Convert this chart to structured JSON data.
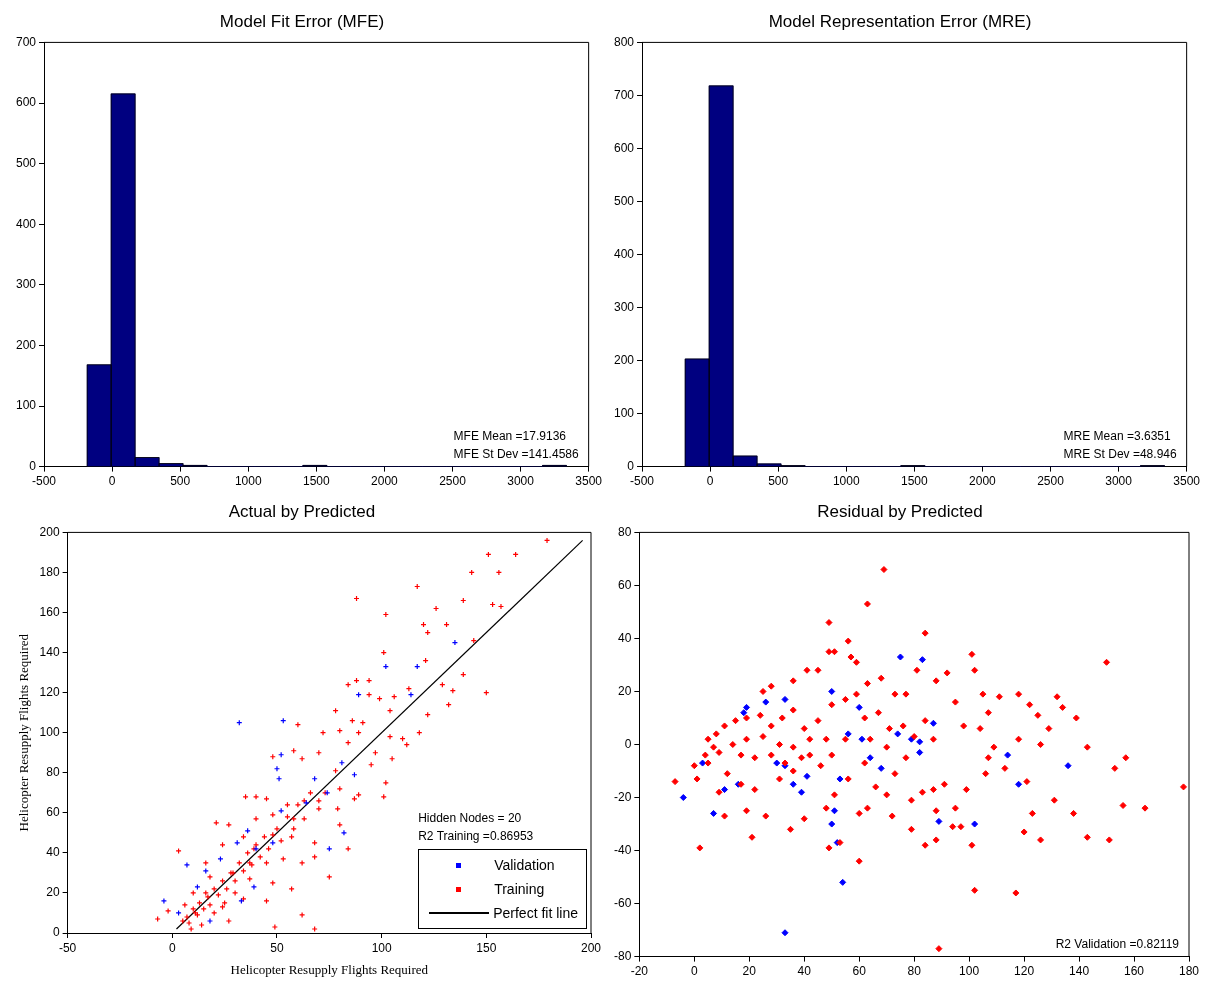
{
  "chart_data": [
    {
      "type": "histogram",
      "title": "Model Fit Error (MFE)",
      "color": "#000080",
      "bins": [
        -183,
        -7,
        169,
        345,
        521,
        697,
        873,
        1049,
        1225,
        1401,
        1577,
        1753,
        1929,
        2105,
        2281,
        2457,
        2633,
        2809,
        2985,
        3161,
        3337
      ],
      "values": [
        168,
        615,
        15,
        5,
        2,
        0,
        0,
        0,
        0,
        2,
        0,
        0,
        0,
        0,
        0,
        0,
        0,
        0,
        0,
        2
      ],
      "xlim": [
        -500,
        3500
      ],
      "xticks": [
        -500,
        0,
        500,
        1000,
        1500,
        2000,
        2500,
        3000,
        3500
      ],
      "ylim": [
        0,
        700
      ],
      "yticks": [
        0,
        100,
        200,
        300,
        400,
        500,
        600,
        700
      ],
      "annotations": [
        "MFE Mean =17.9136",
        "MFE St Dev =141.4586"
      ]
    },
    {
      "type": "histogram",
      "title": "Model Representation Error (MRE)",
      "color": "#000080",
      "bins": [
        -183,
        -7,
        169,
        345,
        521,
        697,
        873,
        1049,
        1225,
        1401,
        1577,
        1753,
        1929,
        2105,
        2281,
        2457,
        2633,
        2809,
        2985,
        3161,
        3337
      ],
      "values": [
        203,
        718,
        20,
        5,
        2,
        0,
        0,
        0,
        0,
        2,
        0,
        0,
        0,
        0,
        0,
        0,
        0,
        0,
        0,
        2
      ],
      "xlim": [
        -500,
        3500
      ],
      "xticks": [
        -500,
        0,
        500,
        1000,
        1500,
        2000,
        2500,
        3000,
        3500
      ],
      "ylim": [
        0,
        800
      ],
      "yticks": [
        0,
        100,
        200,
        300,
        400,
        500,
        600,
        700,
        800
      ],
      "annotations": [
        "MRE Mean =3.6351",
        "MRE St Dev =48.946"
      ]
    },
    {
      "type": "scatter",
      "title": "Actual by Predicted",
      "xlabel": "Helicopter Resupply Flights Required",
      "ylabel": "Helicopter Resupply Flights Required",
      "marker": "cross",
      "legend": "bottom right",
      "xlim": [
        -50,
        200
      ],
      "xticks": [
        -50,
        0,
        50,
        100,
        150,
        200
      ],
      "ylim": [
        0,
        200
      ],
      "yticks": [
        0,
        20,
        40,
        60,
        80,
        100,
        120,
        140,
        160,
        180,
        200
      ],
      "annotations": [
        "Hidden Nodes = 20",
        "R2 Training =0.86953"
      ],
      "series": [
        {
          "name": "Validation",
          "color": "#0000ff",
          "x": [
            32,
            53,
            52,
            50,
            51,
            135,
            102,
            117,
            89,
            114,
            81,
            87,
            68,
            74,
            64,
            52,
            36,
            48,
            40,
            82,
            75,
            7,
            -4,
            3,
            18,
            33,
            31,
            23,
            16,
            12,
            39
          ],
          "values": [
            105,
            106,
            89,
            82,
            77,
            145,
            133,
            133,
            119,
            119,
            85,
            79,
            77,
            70,
            65,
            61,
            51,
            45,
            42,
            50,
            42,
            34,
            16,
            10,
            6,
            16,
            45,
            37,
            31,
            23,
            23
          ]
        },
        {
          "name": "Training",
          "color": "#ff0000",
          "x": [
            179,
            151,
            164,
            143,
            156,
            117,
            88,
            139,
            153,
            157,
            126,
            102,
            120,
            131,
            122,
            144,
            101,
            121,
            139,
            150,
            129,
            134,
            132,
            88,
            94,
            84,
            94,
            99,
            106,
            113,
            104,
            78,
            60,
            72,
            80,
            86,
            91,
            84,
            89,
            104,
            110,
            112,
            118,
            122,
            105,
            97,
            95,
            102,
            101,
            48,
            58,
            62,
            70,
            78,
            87,
            89,
            80,
            73,
            35,
            40,
            45,
            55,
            63,
            70,
            79,
            21,
            27,
            40,
            48,
            58,
            68,
            84,
            80,
            57,
            48,
            34,
            3,
            24,
            16,
            39,
            45,
            53,
            62,
            68,
            75,
            37,
            48,
            57,
            45,
            62,
            68,
            49,
            -7,
            -2,
            11,
            24,
            27,
            34,
            16,
            29,
            37,
            5,
            7,
            8,
            10,
            12,
            13,
            15,
            17,
            18,
            20,
            22,
            24,
            26,
            28,
            30,
            32,
            34,
            36,
            38,
            40,
            42,
            44,
            46,
            50,
            52,
            55,
            58,
            60,
            63,
            66,
            70,
            6,
            10,
            14,
            9,
            20,
            25,
            18,
            30
          ],
          "values": [
            196,
            189,
            189,
            180,
            180,
            173,
            167,
            166,
            164,
            163,
            162,
            159,
            154,
            154,
            150,
            146,
            140,
            136,
            129,
            120,
            124,
            121,
            114,
            126,
            126,
            124,
            119,
            117,
            118,
            122,
            111,
            111,
            104,
            100,
            101,
            106,
            105,
            95,
            100,
            98,
            97,
            94,
            100,
            109,
            87,
            90,
            84,
            75,
            68,
            88,
            91,
            87,
            90,
            81,
            67,
            69,
            72,
            70,
            68,
            68,
            67,
            64,
            66,
            62,
            62,
            55,
            54,
            57,
            59,
            57,
            45,
            42,
            54,
            48,
            49,
            48,
            41,
            44,
            35,
            42,
            35,
            37,
            35,
            38,
            28,
            27,
            25,
            22,
            16,
            9,
            2,
            3,
            7,
            11,
            10,
            13,
            6,
            17,
            20,
            30,
            35,
            6,
            8,
            5,
            12,
            9,
            15,
            12,
            18,
            14,
            22,
            19,
            26,
            22,
            30,
            26,
            35,
            31,
            40,
            34,
            44,
            38,
            48,
            42,
            52,
            46,
            58,
            52,
            64,
            57,
            70,
            66,
            14,
            20,
            4,
            2,
            10,
            15,
            28,
            20
          ]
        },
        {
          "name": "Perfect fit line",
          "type": "line",
          "color": "#000000",
          "marker": "none",
          "x": [
            2,
            196
          ],
          "values": [
            2,
            196
          ]
        }
      ]
    },
    {
      "type": "scatter",
      "title": "Residual by Predicted",
      "marker": "diamond",
      "xlim": [
        -20,
        180
      ],
      "xticks": [
        -20,
        0,
        20,
        40,
        60,
        80,
        100,
        120,
        140,
        160,
        180
      ],
      "ylim": [
        -80,
        80
      ],
      "yticks": [
        -80,
        -60,
        -40,
        -20,
        0,
        20,
        40,
        60,
        80
      ],
      "annotations": [
        "R2 Validation =0.82119"
      ],
      "series": [
        {
          "color": "#ff0000",
          "x": [
            69,
            63,
            49,
            56,
            84,
            49,
            51,
            57,
            59,
            41,
            45,
            36,
            28,
            25,
            101,
            102,
            150,
            92,
            81,
            88,
            73,
            77,
            68,
            63,
            105,
            111,
            118,
            132,
            122,
            134,
            139,
            125,
            95,
            98,
            104,
            107,
            129,
            126,
            118,
            109,
            107,
            113,
            106,
            143,
            157,
            153,
            178,
            156,
            164,
            151,
            143,
            138,
            131,
            123,
            121,
            126,
            120,
            117,
            102,
            101,
            99,
            97,
            94,
            95,
            91,
            88,
            88,
            84,
            87,
            83,
            79,
            79,
            89,
            77,
            73,
            72,
            70,
            66,
            63,
            60,
            60,
            53,
            49,
            40,
            35,
            19,
            21,
            26,
            2,
            -7,
            0,
            1,
            11,
            9,
            48,
            51,
            56,
            62,
            46,
            42,
            36,
            31,
            22,
            17,
            12,
            5,
            7,
            8,
            11,
            15,
            19,
            24,
            28,
            32,
            36,
            40,
            45,
            50,
            55,
            59,
            62,
            67,
            71,
            76,
            80,
            84,
            87,
            55,
            48,
            42,
            36,
            31,
            25,
            19,
            14,
            9,
            5,
            4,
            17,
            22,
            28,
            33,
            39,
            50,
            70,
            64
          ],
          "values": [
            66,
            53,
            46,
            39,
            42,
            35,
            35,
            33,
            31,
            28,
            28,
            24,
            22,
            20,
            34,
            28,
            31,
            27,
            28,
            24,
            19,
            19,
            25,
            23,
            19,
            18,
            19,
            18,
            15,
            14,
            10,
            11,
            16,
            7,
            6,
            12,
            6,
            0,
            2,
            -1,
            -5,
            -9,
            -11,
            -1,
            -5,
            -9,
            -16,
            -23,
            -24,
            -36,
            -35,
            -26,
            -21,
            -26,
            -14,
            -36,
            -33,
            -56,
            -55,
            -38,
            -17,
            -31,
            -31,
            -24,
            -15,
            -25,
            -36,
            -38,
            -17,
            -18,
            -21,
            -32,
            -77,
            -5,
            -11,
            -27,
            -19,
            -16,
            -24,
            -26,
            -44,
            -37,
            -39,
            -28,
            -32,
            -25,
            -35,
            -27,
            -39,
            -14,
            -8,
            -13,
            -27,
            -18,
            -24,
            -19,
            -13,
            -7,
            -8,
            -4,
            -10,
            -13,
            -17,
            -15,
            -11,
            -7,
            -1,
            4,
            7,
            9,
            10,
            11,
            7,
            10,
            13,
            6,
            9,
            15,
            17,
            19,
            10,
            12,
            6,
            7,
            3,
            9,
            2,
            2,
            2,
            2,
            -1,
            0,
            3,
            2,
            0,
            -3,
            2,
            -4,
            -4,
            -5,
            -4,
            -7,
            -5,
            -4,
            -1,
            2
          ]
        },
        {
          "color": "#0000ff",
          "x": [
            -4,
            7,
            33,
            54,
            52,
            50,
            51,
            39,
            36,
            41,
            33,
            30,
            53,
            64,
            68,
            89,
            102,
            118,
            114,
            136,
            82,
            82,
            79,
            74,
            87,
            75,
            83,
            50,
            60,
            33,
            26,
            19,
            18,
            3,
            11,
            16,
            56,
            61
          ],
          "values": [
            -20,
            -26,
            -71,
            -52,
            -37,
            -30,
            -25,
            -18,
            -15,
            -12,
            -8,
            -7,
            -13,
            -5,
            -9,
            -29,
            -30,
            -15,
            -4,
            -8,
            -3,
            1,
            2,
            4,
            8,
            33,
            32,
            20,
            14,
            17,
            16,
            14,
            12,
            -7,
            -17,
            -15,
            4,
            2
          ]
        }
      ]
    }
  ]
}
